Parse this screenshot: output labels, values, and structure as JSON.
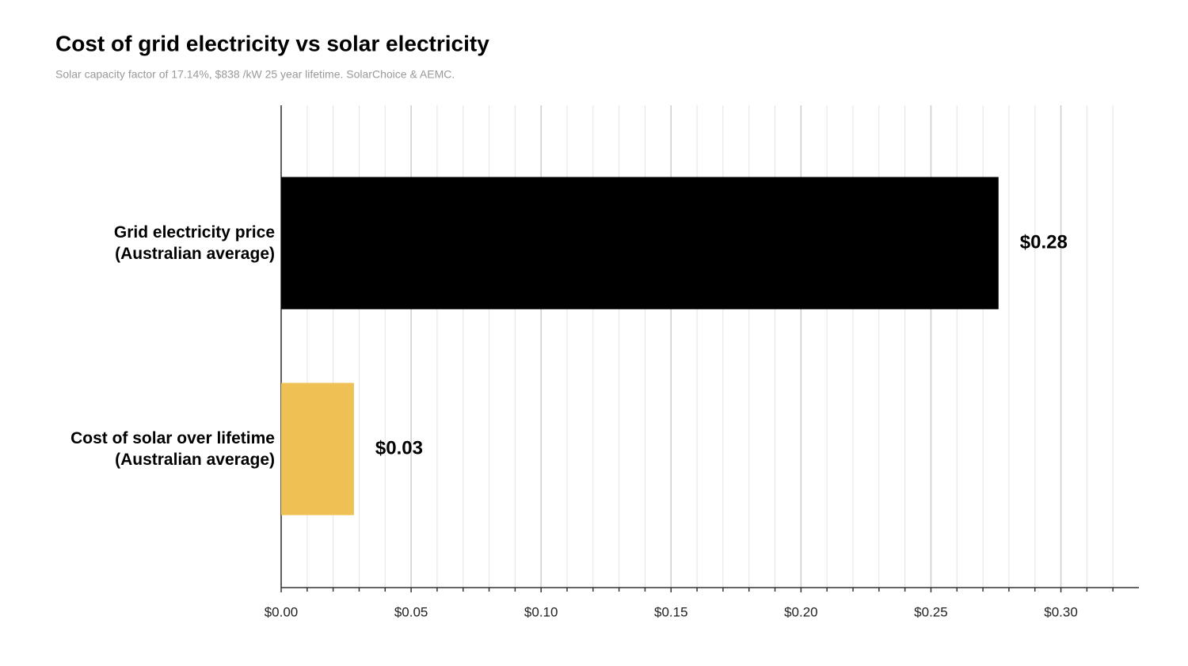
{
  "chart_data": {
    "type": "hbar",
    "title": "Cost of grid electricity vs solar electricity",
    "subtitle": "Solar capacity factor of 17.14%, $838 /kW 25 year lifetime. SolarChoice & AEMC.",
    "categories": [
      "Grid electricity price\n(Australian average)",
      "Cost of solar over lifetime\n(Australian average)"
    ],
    "values": [
      0.276,
      0.028
    ],
    "value_labels": [
      "$0.28",
      "$0.03"
    ],
    "colors": [
      "#000000",
      "#efc155"
    ],
    "xlim": [
      0,
      0.33
    ],
    "xticks": [
      {
        "value": 0,
        "label": "$0.00"
      },
      {
        "value": 0.05,
        "label": "$0.05"
      },
      {
        "value": 0.1,
        "label": "$0.10"
      },
      {
        "value": 0.15,
        "label": "$0.15"
      },
      {
        "value": 0.2,
        "label": "$0.20"
      },
      {
        "value": 0.25,
        "label": "$0.25"
      },
      {
        "value": 0.3,
        "label": "$0.30"
      }
    ],
    "minor_xticks": [
      0.01,
      0.02,
      0.03,
      0.04,
      0.06,
      0.07,
      0.08,
      0.09,
      0.11,
      0.12,
      0.13,
      0.14,
      0.16,
      0.17,
      0.18,
      0.19,
      0.21,
      0.22,
      0.23,
      0.24,
      0.26,
      0.27,
      0.28,
      0.29,
      0.31,
      0.32
    ],
    "grid": true
  }
}
